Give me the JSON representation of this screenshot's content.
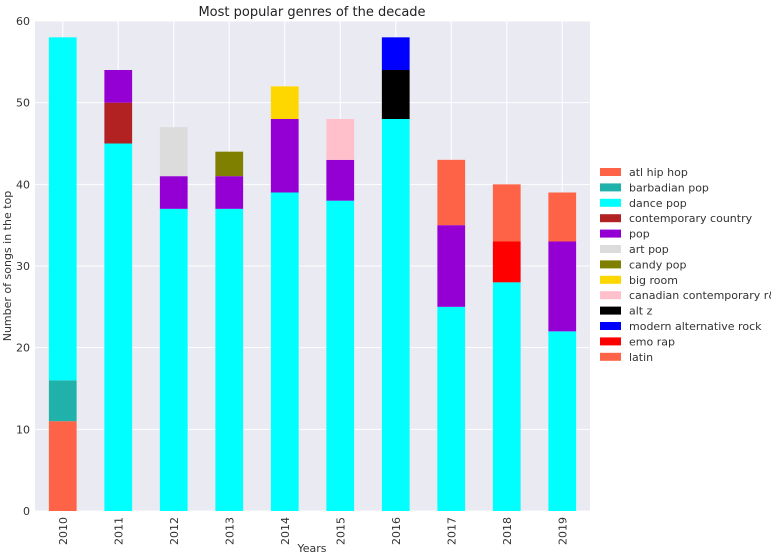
{
  "chart_data": {
    "type": "bar",
    "stacked": true,
    "title": "Most popular genres of the decade",
    "xlabel": "Years",
    "ylabel": "Number of songs in the top",
    "categories": [
      "2010",
      "2011",
      "2012",
      "2013",
      "2014",
      "2015",
      "2016",
      "2017",
      "2018",
      "2019"
    ],
    "ylim": [
      0,
      60
    ],
    "yticks": [
      0,
      10,
      20,
      30,
      40,
      50,
      60
    ],
    "grid": true,
    "legend_position": "right",
    "series": [
      {
        "name": "atl hip hop",
        "color": "#ff6347",
        "values": [
          11,
          0,
          0,
          0,
          0,
          0,
          0,
          0,
          0,
          0
        ]
      },
      {
        "name": "barbadian pop",
        "color": "#20b2aa",
        "values": [
          5,
          0,
          0,
          0,
          0,
          0,
          0,
          0,
          0,
          0
        ]
      },
      {
        "name": "dance pop",
        "color": "#00ffff",
        "values": [
          42,
          45,
          37,
          37,
          39,
          38,
          48,
          25,
          28,
          22
        ]
      },
      {
        "name": "contemporary country",
        "color": "#b22222",
        "values": [
          0,
          5,
          0,
          0,
          0,
          0,
          0,
          0,
          0,
          0
        ]
      },
      {
        "name": "pop",
        "color": "#9400d3",
        "values": [
          0,
          4,
          4,
          4,
          9,
          5,
          0,
          10,
          0,
          11
        ]
      },
      {
        "name": "art pop",
        "color": "#dcdcdc",
        "values": [
          0,
          0,
          6,
          0,
          0,
          0,
          0,
          0,
          0,
          0
        ]
      },
      {
        "name": "candy pop",
        "color": "#808000",
        "values": [
          0,
          0,
          0,
          3,
          0,
          0,
          0,
          0,
          0,
          0
        ]
      },
      {
        "name": "big room",
        "color": "#ffd700",
        "values": [
          0,
          0,
          0,
          0,
          4,
          0,
          0,
          0,
          0,
          0
        ]
      },
      {
        "name": "canadian contemporary r&b",
        "color": "#ffc0cb",
        "values": [
          0,
          0,
          0,
          0,
          0,
          5,
          0,
          0,
          0,
          0
        ]
      },
      {
        "name": "alt z",
        "color": "#000000",
        "values": [
          0,
          0,
          0,
          0,
          0,
          0,
          6,
          0,
          0,
          0
        ]
      },
      {
        "name": "modern alternative rock",
        "color": "#0000ff",
        "values": [
          0,
          0,
          0,
          0,
          0,
          0,
          4,
          0,
          0,
          0
        ]
      },
      {
        "name": "emo rap",
        "color": "#ff0000",
        "values": [
          0,
          0,
          0,
          0,
          0,
          0,
          0,
          0,
          5,
          0
        ]
      },
      {
        "name": "latin",
        "color": "#ff6347",
        "values": [
          0,
          0,
          0,
          0,
          0,
          0,
          0,
          8,
          7,
          6
        ]
      }
    ]
  }
}
